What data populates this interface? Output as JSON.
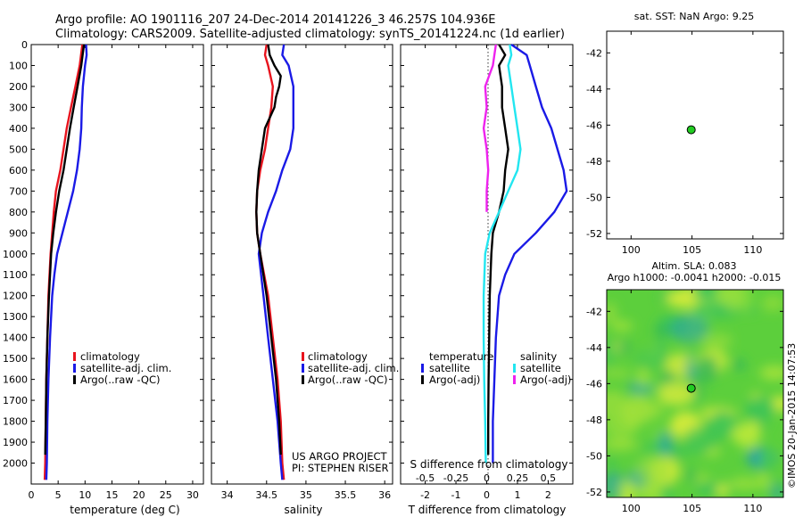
{
  "header": {
    "line1": "Argo profile: AO 1901116_207 24-Dec-2014 20141226_3 46.257S 104.936E",
    "line2": "Climatology: CARS2009. Satellite-adjusted climatology: synTS_20141224.nc (1d earlier)"
  },
  "colors": {
    "red": "#e8141e",
    "blue": "#1a1ae6",
    "black": "#000000",
    "cyan": "#22e6f0",
    "magenta": "#ee22ee",
    "green": "#22cc22"
  },
  "chart_data": [
    {
      "type": "line",
      "xlabel": "temperature (deg C)",
      "xlim": [
        0,
        32
      ],
      "ylim": [
        2100,
        0
      ],
      "xticks": [
        0,
        5,
        10,
        15,
        20,
        25,
        30
      ],
      "yticks": [
        0,
        100,
        200,
        300,
        400,
        500,
        600,
        700,
        800,
        900,
        1000,
        1100,
        1200,
        1300,
        1400,
        1500,
        1600,
        1700,
        1800,
        1900,
        2000
      ],
      "legend": [
        "climatology",
        "satellite-adj. clim.",
        "Argo(..raw -QC)"
      ],
      "legend_colors": [
        "#e8141e",
        "#1a1ae6",
        "#000000"
      ],
      "series": [
        {
          "color": "#e8141e",
          "depth": [
            0,
            100,
            200,
            300,
            400,
            500,
            600,
            700,
            800,
            900,
            1000,
            1200,
            1400,
            1600,
            1800,
            2000,
            2080
          ],
          "values": [
            9.5,
            9.0,
            8.2,
            7.4,
            6.6,
            6.0,
            5.4,
            4.6,
            4.2,
            3.9,
            3.6,
            3.2,
            3.0,
            2.8,
            2.7,
            2.6,
            2.5
          ]
        },
        {
          "color": "#1a1ae6",
          "depth": [
            0,
            50,
            100,
            200,
            300,
            400,
            500,
            600,
            700,
            800,
            900,
            1000,
            1100,
            1200,
            1400,
            1600,
            1800,
            2000,
            2080
          ],
          "values": [
            10.2,
            10.3,
            10.0,
            9.6,
            9.4,
            9.3,
            9.0,
            8.5,
            7.8,
            6.8,
            5.8,
            4.8,
            4.3,
            3.9,
            3.5,
            3.2,
            3.0,
            2.9,
            2.8
          ]
        },
        {
          "color": "#000000",
          "depth": [
            0,
            100,
            200,
            300,
            400,
            500,
            600,
            700,
            800,
            900,
            1000,
            1200,
            1400,
            1600,
            1800,
            1960
          ],
          "values": [
            9.8,
            9.3,
            8.6,
            7.9,
            7.2,
            6.6,
            6.0,
            5.2,
            4.6,
            4.1,
            3.7,
            3.3,
            3.0,
            2.8,
            2.7,
            2.6
          ]
        }
      ]
    },
    {
      "type": "line",
      "xlabel": "salinity",
      "xlim": [
        33.8,
        36.1
      ],
      "ylim": [
        2100,
        0
      ],
      "xticks": [
        34,
        34.5,
        35,
        35.5,
        36
      ],
      "legend": [
        "climatology",
        "satellite-adj. clim.",
        "Argo(..raw -QC)"
      ],
      "legend_colors": [
        "#e8141e",
        "#1a1ae6",
        "#000000"
      ],
      "annotation": [
        "US ARGO PROJECT",
        "PI: STEPHEN RISER"
      ],
      "series": [
        {
          "color": "#e8141e",
          "depth": [
            0,
            50,
            100,
            200,
            300,
            400,
            500,
            600,
            700,
            800,
            900,
            1000,
            1200,
            1400,
            1600,
            1800,
            2000,
            2080
          ],
          "values": [
            34.5,
            34.48,
            34.52,
            34.58,
            34.56,
            34.52,
            34.48,
            34.42,
            34.38,
            34.37,
            34.38,
            34.42,
            34.52,
            34.58,
            34.64,
            34.68,
            34.7,
            34.72
          ]
        },
        {
          "color": "#1a1ae6",
          "depth": [
            0,
            50,
            100,
            200,
            300,
            400,
            500,
            600,
            700,
            800,
            900,
            1000,
            1200,
            1400,
            1600,
            1800,
            2000,
            2080
          ],
          "values": [
            34.72,
            34.7,
            34.78,
            34.84,
            34.84,
            34.84,
            34.8,
            34.7,
            34.62,
            34.52,
            34.44,
            34.4,
            34.46,
            34.52,
            34.58,
            34.64,
            34.68,
            34.7
          ]
        },
        {
          "color": "#000000",
          "depth": [
            0,
            50,
            100,
            150,
            200,
            250,
            300,
            400,
            500,
            600,
            700,
            800,
            900,
            1000,
            1200,
            1400,
            1600,
            1800,
            1960
          ],
          "values": [
            34.52,
            34.54,
            34.6,
            34.68,
            34.66,
            34.62,
            34.6,
            34.48,
            34.44,
            34.4,
            34.38,
            34.37,
            34.38,
            34.42,
            34.5,
            34.56,
            34.62,
            34.66,
            34.68
          ]
        }
      ]
    },
    {
      "type": "line",
      "xlabel": "T difference from climatology",
      "xlabel2": "S difference from climatology",
      "xlim": [
        -2.8,
        2.8
      ],
      "ylim": [
        2100,
        0
      ],
      "xticks": [
        -2,
        -1,
        0,
        1,
        2
      ],
      "xticks2": [
        -0.5,
        -0.25,
        0,
        0.25,
        0.5
      ],
      "legend_groups": [
        "temperature",
        "salinity"
      ],
      "legend": [
        "satellite",
        "Argo(-adj)",
        "satellite",
        "Argo(-adj)"
      ],
      "legend_colors": [
        "#1a1ae6",
        "#000000",
        "#22e6f0",
        "#ee22ee"
      ],
      "series": [
        {
          "color": "#1a1ae6",
          "depth": [
            0,
            50,
            100,
            200,
            300,
            400,
            500,
            600,
            700,
            800,
            900,
            1000,
            1100,
            1200,
            1400,
            1600,
            1800,
            2000
          ],
          "values": [
            0.8,
            1.3,
            1.4,
            1.6,
            1.8,
            2.1,
            2.3,
            2.5,
            2.6,
            2.2,
            1.6,
            0.9,
            0.6,
            0.4,
            0.3,
            0.25,
            0.2,
            0.2
          ]
        },
        {
          "color": "#000000",
          "depth": [
            0,
            50,
            100,
            200,
            300,
            400,
            500,
            600,
            700,
            800,
            900,
            1000,
            1200,
            1400,
            1600,
            1800,
            1960
          ],
          "values": [
            0.4,
            0.6,
            0.4,
            0.5,
            0.5,
            0.6,
            0.7,
            0.6,
            0.55,
            0.4,
            0.2,
            0.15,
            0.1,
            0.08,
            0.06,
            0.05,
            0.05
          ]
        },
        {
          "color": "#22e6f0",
          "depth": [
            0,
            50,
            100,
            200,
            300,
            400,
            500,
            600,
            700,
            800,
            900,
            1000,
            1200,
            1400,
            1600,
            1800,
            2000
          ],
          "values": [
            0.75,
            0.8,
            0.7,
            0.8,
            0.9,
            1.0,
            1.1,
            1.0,
            0.7,
            0.4,
            0.1,
            -0.05,
            -0.1,
            -0.1,
            -0.08,
            -0.05,
            -0.03
          ]
        },
        {
          "color": "#ee22ee",
          "depth": [
            0,
            100,
            200,
            300,
            400,
            500,
            600,
            700,
            800
          ],
          "values": [
            0.3,
            0.2,
            -0.05,
            0.0,
            -0.1,
            0.0,
            0.05,
            0.0,
            0.0
          ]
        }
      ]
    },
    {
      "type": "scatter",
      "title": "sat. SST: NaN Argo: 9.25",
      "xlim": [
        98,
        112.5
      ],
      "ylim": [
        -52.3,
        -40.8
      ],
      "xticks": [
        100,
        105,
        110
      ],
      "yticks": [
        -42,
        -44,
        -46,
        -48,
        -50,
        -52
      ],
      "points": [
        {
          "x": 104.936,
          "y": -46.257
        }
      ]
    },
    {
      "type": "heatmap",
      "title": "Altim. SLA: 0.083",
      "subtitle": "Argo h1000: -0.0041 h2000: -0.015",
      "xlim": [
        98,
        112.5
      ],
      "ylim": [
        -52.3,
        -40.8
      ],
      "xticks": [
        100,
        105,
        110
      ],
      "yticks": [
        -42,
        -44,
        -46,
        -48,
        -50,
        -52
      ],
      "points": [
        {
          "x": 104.936,
          "y": -46.257
        }
      ]
    }
  ],
  "footer": {
    "credit": "©IMOS 20-Jan-2015 14:07:53"
  }
}
